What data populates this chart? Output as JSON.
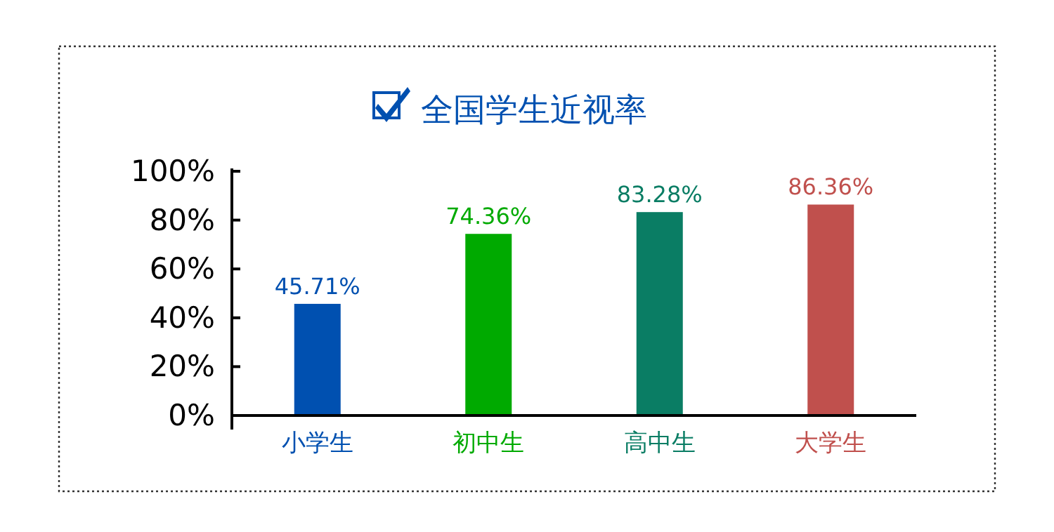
{
  "chart_data": {
    "type": "bar",
    "title": "全国学生近视率",
    "categories": [
      "小学生",
      "初中生",
      "高中生",
      "大学生"
    ],
    "values": [
      45.71,
      74.36,
      83.28,
      86.36
    ],
    "colors": [
      "#0050b0",
      "#00aa00",
      "#0a7d64",
      "#c0504d"
    ],
    "value_labels": [
      "45.71%",
      "74.36%",
      "83.28%",
      "86.36%"
    ],
    "ylim": [
      0,
      100
    ],
    "yticks": [
      {
        "value": 0,
        "label": "0%"
      },
      {
        "value": 20,
        "label": "20%"
      },
      {
        "value": 40,
        "label": "40%"
      },
      {
        "value": 60,
        "label": "60%"
      },
      {
        "value": 80,
        "label": "80%"
      },
      {
        "value": 100,
        "label": "100%"
      }
    ],
    "grid": false
  }
}
